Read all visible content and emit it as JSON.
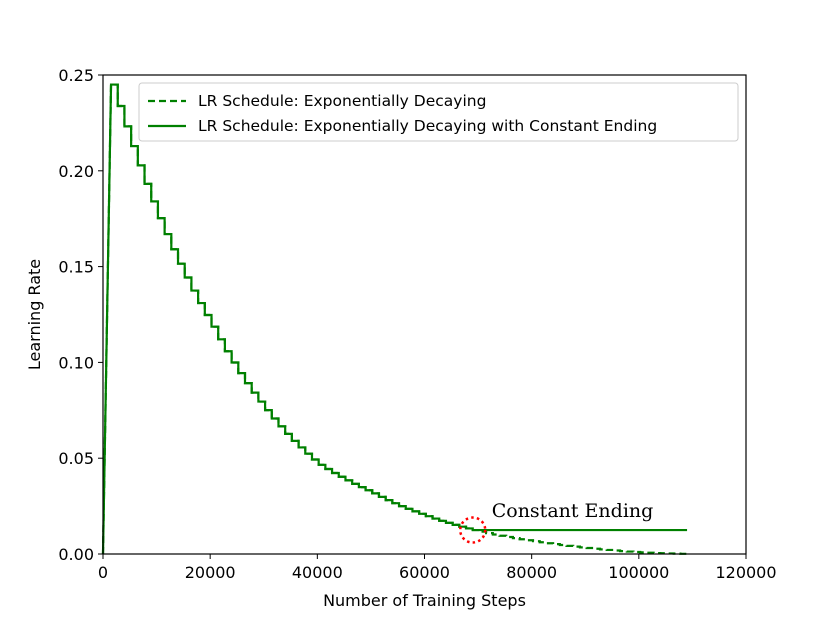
{
  "colors": {
    "series": "#008000",
    "highlight": "#ff0000"
  },
  "chart_data": {
    "type": "line",
    "xlabel": "Number of Training Steps",
    "ylabel": "Learning Rate",
    "xlim": [
      0,
      120000
    ],
    "ylim": [
      0,
      0.25
    ],
    "x_ticks": [
      0,
      20000,
      40000,
      60000,
      80000,
      100000,
      120000
    ],
    "x_tick_labels": [
      "0",
      "20000",
      "40000",
      "60000",
      "80000",
      "100000",
      "120000"
    ],
    "y_ticks": [
      0,
      0.05,
      0.1,
      0.15,
      0.2,
      0.25
    ],
    "y_tick_labels": [
      "0.00",
      "0.05",
      "0.10",
      "0.15",
      "0.20",
      "0.25"
    ],
    "grid": false,
    "legend_position": "top-right",
    "legend": [
      {
        "label": "LR Schedule: Exponentially Decaying",
        "style": "dashed",
        "color": "#008000"
      },
      {
        "label": "LR Schedule: Exponentially Decaying with Constant Ending",
        "style": "solid",
        "color": "#008000"
      }
    ],
    "schedule": {
      "warmup_end_step": 1500,
      "peak_lr": 0.245,
      "constant_start_step": 69000,
      "constant_lr": 0.0125,
      "end_step": 109000
    },
    "series": [
      {
        "name": "LR Schedule: Exponentially Decaying",
        "style": "dashed",
        "x": [
          0,
          1500,
          5000,
          10000,
          20000,
          30000,
          40000,
          50000,
          60000,
          69000,
          75000,
          80000,
          85000,
          90000,
          95000,
          100000,
          105000,
          109000
        ],
        "y": [
          0,
          0.245,
          0.215,
          0.177,
          0.12,
          0.076,
          0.047,
          0.032,
          0.02,
          0.0125,
          0.009,
          0.0068,
          0.0048,
          0.0032,
          0.0019,
          0.0009,
          0.0003,
          0.0
        ]
      },
      {
        "name": "LR Schedule: Exponentially Decaying with Constant Ending",
        "style": "solid",
        "x": [
          0,
          1500,
          5000,
          10000,
          20000,
          30000,
          40000,
          50000,
          60000,
          69000,
          75000,
          80000,
          90000,
          100000,
          109000
        ],
        "y": [
          0,
          0.245,
          0.215,
          0.177,
          0.12,
          0.076,
          0.047,
          0.032,
          0.02,
          0.0125,
          0.0125,
          0.0125,
          0.0125,
          0.0125,
          0.0125
        ]
      }
    ],
    "annotations": [
      {
        "text": "Constant Ending",
        "x": 69000,
        "y": 0.0125,
        "marker": "dotted-circle"
      }
    ]
  }
}
